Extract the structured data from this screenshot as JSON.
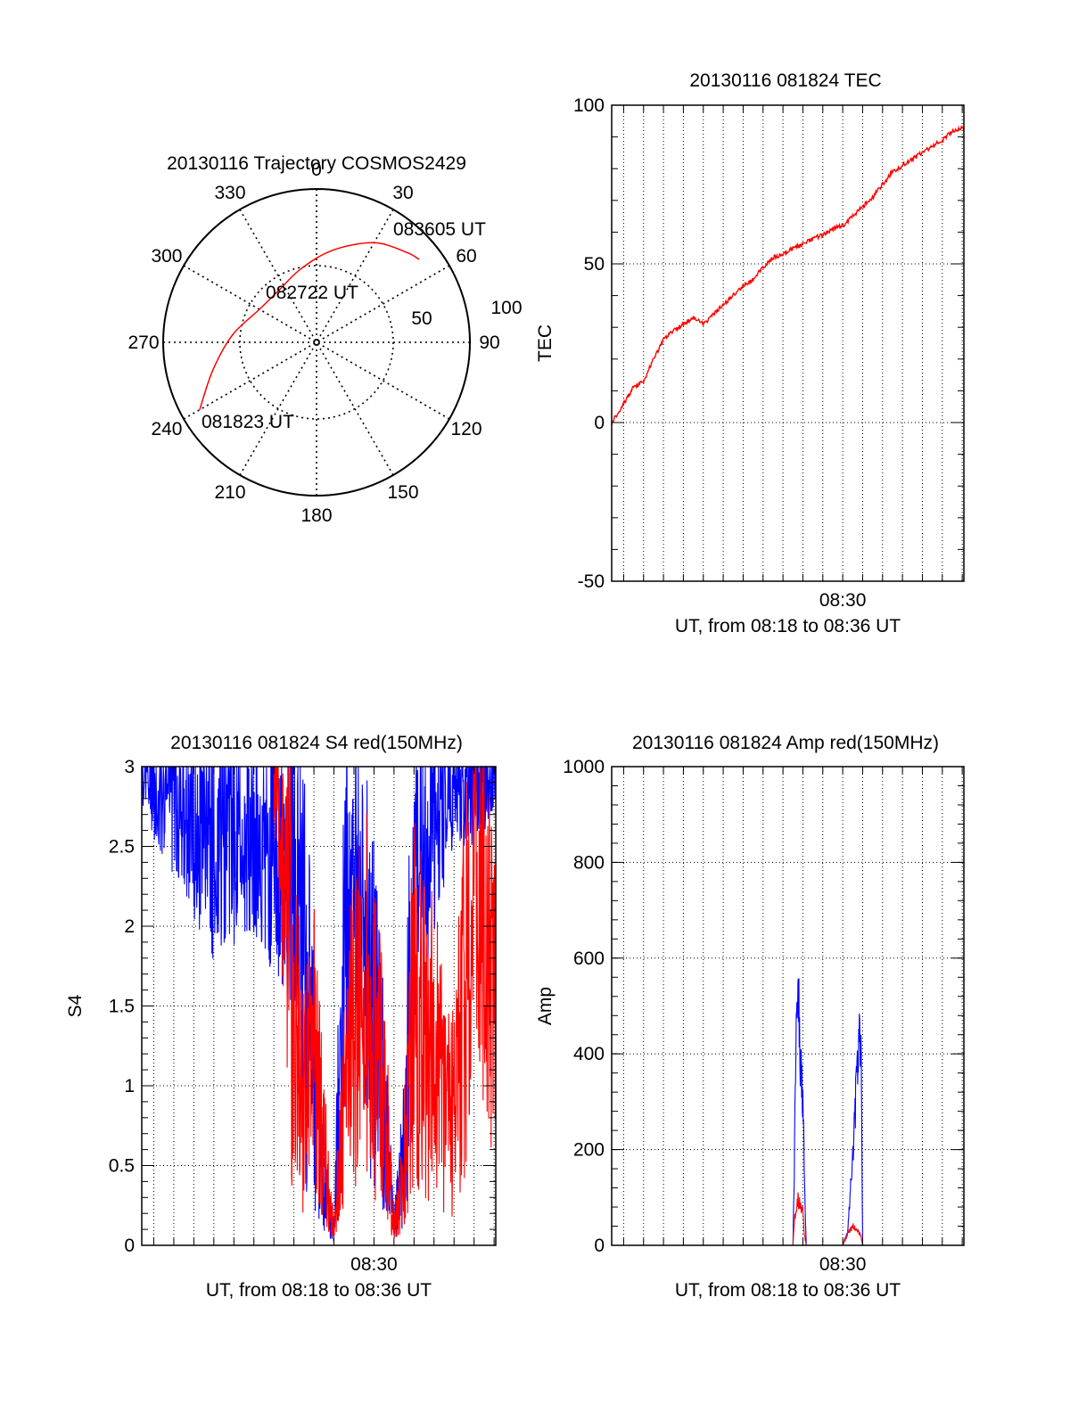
{
  "colors": {
    "red": "#ff0000",
    "blue": "#0000ff",
    "axis": "#000000",
    "grid": "#000000",
    "background": "#ffffff"
  },
  "chart_data": [
    {
      "id": "trajectory",
      "type": "polar",
      "title": "20130116 Trajectory COSMOS2429",
      "azimuth_labels": [
        "0",
        "30",
        "60",
        "90",
        "120",
        "150",
        "180",
        "210",
        "240",
        "270",
        "300",
        "330"
      ],
      "elevation_labels": [
        "50",
        "100"
      ],
      "rings": [
        0,
        50
      ],
      "track": {
        "color": "#ff0000",
        "points": [
          {
            "az": 240,
            "el": 12
          },
          {
            "az": 255,
            "el": 30
          },
          {
            "az": 275,
            "el": 45
          },
          {
            "az": 300,
            "el": 57
          },
          {
            "az": 325,
            "el": 58
          },
          {
            "az": 348,
            "el": 51
          },
          {
            "az": 10,
            "el": 39
          },
          {
            "az": 30,
            "el": 25
          },
          {
            "az": 45,
            "el": 17
          },
          {
            "az": 51,
            "el": 14
          }
        ]
      },
      "annotations": [
        {
          "text": "083605 UT",
          "az": 51,
          "el": 14
        },
        {
          "text": "082722 UT",
          "az": 0,
          "el": 55
        },
        {
          "text": "081823 UT",
          "az": 240,
          "el": 12
        }
      ],
      "grid": true
    },
    {
      "id": "tec",
      "type": "line",
      "title": "20130116 081824 TEC",
      "xlabel": "UT, from 08:18 to 08:36 UT",
      "ylabel": "TEC",
      "xlim": [
        "08:18:24",
        "08:36:05"
      ],
      "ylim": [
        -50,
        100
      ],
      "yticks": [
        "-50",
        "0",
        "50",
        "100"
      ],
      "xticks": [
        {
          "label": "08:30",
          "time": "08:30:00"
        }
      ],
      "grid": true,
      "series": [
        {
          "color": "#ff0000",
          "x": [
            "08:18:24",
            "08:19:00",
            "08:19:30",
            "08:20:00",
            "08:20:30",
            "08:21:00",
            "08:21:30",
            "08:22:00",
            "08:22:30",
            "08:23:00",
            "08:23:30",
            "08:24:00",
            "08:24:30",
            "08:25:00",
            "08:25:30",
            "08:26:00",
            "08:26:30",
            "08:27:00",
            "08:27:30",
            "08:28:00",
            "08:28:30",
            "08:29:00",
            "08:29:30",
            "08:30:00",
            "08:30:30",
            "08:31:00",
            "08:31:30",
            "08:32:00",
            "08:32:30",
            "08:33:00",
            "08:33:30",
            "08:34:00",
            "08:34:30",
            "08:35:00",
            "08:35:30",
            "08:36:05"
          ],
          "y": [
            0,
            6,
            11,
            13,
            20,
            26,
            29,
            31,
            33,
            31,
            34,
            37,
            40,
            43,
            45,
            49,
            52,
            53,
            55,
            56,
            58,
            59,
            61,
            62,
            65,
            68,
            71,
            75,
            79,
            81,
            83,
            85,
            87,
            89,
            92,
            93
          ]
        }
      ]
    },
    {
      "id": "s4",
      "type": "line",
      "title": "20130116 081824 S4 red(150MHz)",
      "xlabel": "UT, from 08:18 to 08:36 UT",
      "ylabel": "S4",
      "xlim": [
        "08:18:24",
        "08:36:05"
      ],
      "ylim": [
        0,
        3
      ],
      "yticks": [
        "0",
        "0.5",
        "1",
        "1.5",
        "2",
        "2.5",
        "3"
      ],
      "xticks": [
        {
          "label": "08:30",
          "time": "08:30:00"
        }
      ],
      "grid": true,
      "series": [
        {
          "color": "#0000ff",
          "x": [
            "08:18:24",
            "08:20:00",
            "08:22:00",
            "08:24:00",
            "08:26:00",
            "08:26:30",
            "08:27:00",
            "08:27:30",
            "08:28:00",
            "08:28:30",
            "08:29:00",
            "08:29:30",
            "08:30:00",
            "08:30:30",
            "08:31:00",
            "08:31:30",
            "08:32:00",
            "08:33:00",
            "08:34:00",
            "08:35:00",
            "08:36:05"
          ],
          "y": [
            3.0,
            2.8,
            2.5,
            2.6,
            2.3,
            1.9,
            1.0,
            0.4,
            0.08,
            1.8,
            2.3,
            2.1,
            1.4,
            0.9,
            0.1,
            0.6,
            2.2,
            2.6,
            2.9,
            2.9,
            3.0
          ]
        },
        {
          "color": "#ff0000",
          "x": [
            "08:25:00",
            "08:25:30",
            "08:26:00",
            "08:26:30",
            "08:27:00",
            "08:27:30",
            "08:28:00",
            "08:28:30",
            "08:29:00",
            "08:29:30",
            "08:30:00",
            "08:30:30",
            "08:31:00",
            "08:31:30",
            "08:32:00",
            "08:33:00",
            "08:34:00",
            "08:35:00",
            "08:36:05"
          ],
          "y": [
            3.0,
            2.3,
            1.5,
            0.9,
            1.2,
            0.6,
            0.08,
            0.9,
            1.4,
            1.6,
            1.3,
            1.0,
            0.1,
            0.5,
            1.6,
            1.2,
            0.8,
            2.3,
            1.6
          ]
        }
      ]
    },
    {
      "id": "amp",
      "type": "line",
      "title": "20130116 081824 Amp red(150MHz)",
      "xlabel": "UT, from 08:18 to 08:36 UT",
      "ylabel": "Amp",
      "xlim": [
        "08:18:24",
        "08:36:05"
      ],
      "ylim": [
        0,
        1000
      ],
      "yticks": [
        "0",
        "200",
        "400",
        "600",
        "800",
        "1000"
      ],
      "xticks": [
        {
          "label": "08:30",
          "time": "08:30:00"
        }
      ],
      "grid": true,
      "series": [
        {
          "color": "#0000ff",
          "x": [
            "08:18:24",
            "08:27:30",
            "08:27:35",
            "08:27:40",
            "08:27:45",
            "08:27:50",
            "08:28:00",
            "08:28:05",
            "08:28:10",
            "08:30:00",
            "08:30:15",
            "08:30:30",
            "08:30:40",
            "08:30:50",
            "08:30:55",
            "08:31:00",
            "08:36:05"
          ],
          "y": [
            0,
            0,
            200,
            520,
            590,
            420,
            300,
            120,
            0,
            0,
            30,
            180,
            320,
            420,
            430,
            0,
            0
          ]
        },
        {
          "color": "#ff0000",
          "x": [
            "08:18:24",
            "08:27:30",
            "08:27:35",
            "08:27:45",
            "08:28:00",
            "08:28:05",
            "08:28:10",
            "08:30:00",
            "08:30:15",
            "08:30:30",
            "08:30:45",
            "08:30:55",
            "08:31:00",
            "08:36:05"
          ],
          "y": [
            0,
            0,
            60,
            95,
            70,
            20,
            0,
            0,
            25,
            40,
            30,
            20,
            0,
            0
          ]
        }
      ]
    }
  ]
}
